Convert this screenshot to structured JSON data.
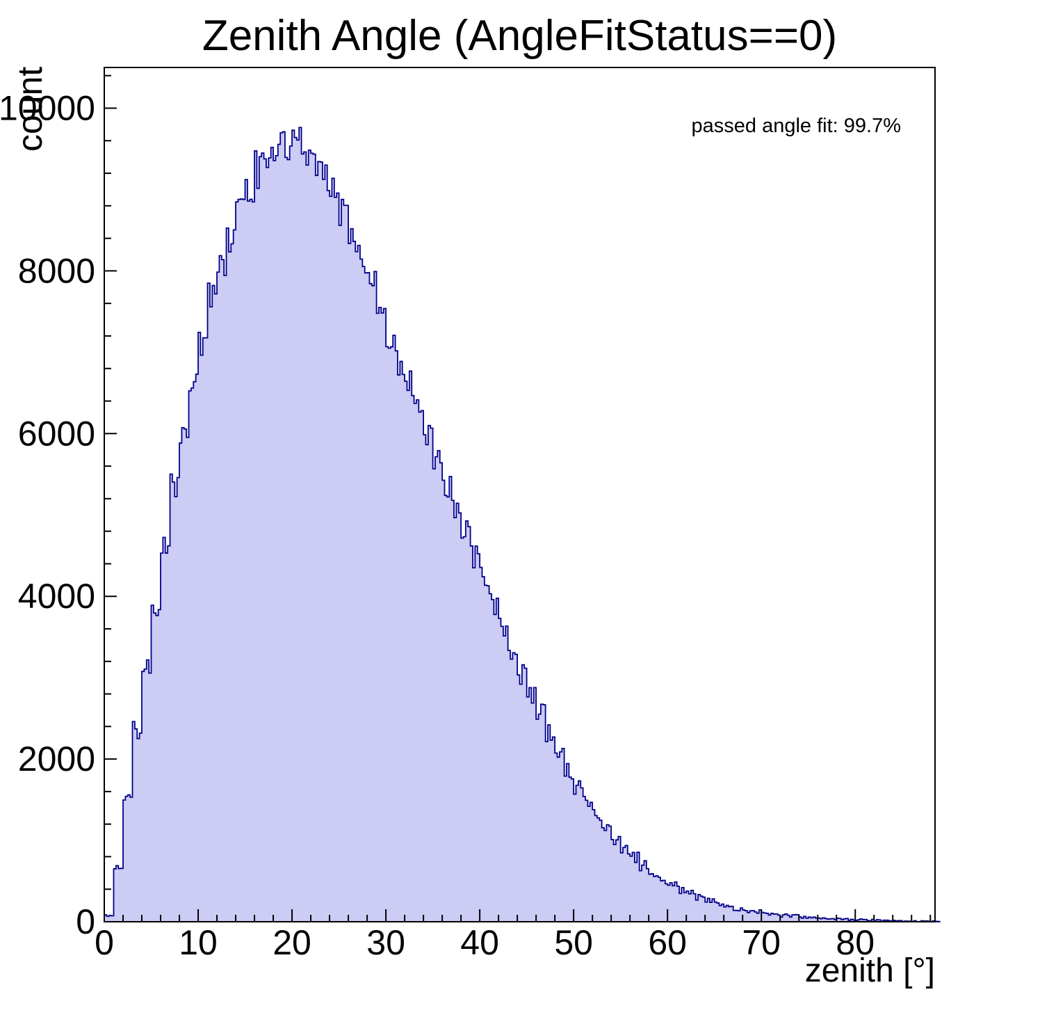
{
  "chart_data": {
    "type": "bar",
    "subtype": "histogram",
    "title": "Zenith Angle (AngleFitStatus==0)",
    "xlabel": "zenith [°]",
    "ylabel": "count",
    "annotation": "passed angle fit: 99.7%",
    "xlim": [
      0,
      88.5
    ],
    "ylim": [
      0,
      10500
    ],
    "x_ticks": [
      0,
      10,
      20,
      30,
      40,
      50,
      60,
      70,
      80
    ],
    "y_ticks": [
      0,
      2000,
      4000,
      6000,
      8000,
      10000
    ],
    "x_minor_step": 2,
    "y_minor_step": 400,
    "bin_width": 1,
    "bin_start": 0,
    "grid": false,
    "legend": null,
    "values": [
      80,
      700,
      1550,
      2350,
      3100,
      3900,
      4600,
      5350,
      6000,
      6600,
      7150,
      7650,
      8100,
      8450,
      8750,
      9000,
      9250,
      9450,
      9600,
      9550,
      9550,
      9450,
      9300,
      9150,
      8950,
      8700,
      8400,
      8100,
      7850,
      7450,
      7100,
      6850,
      6600,
      6300,
      6000,
      5700,
      5400,
      5100,
      4800,
      4500,
      4200,
      3900,
      3600,
      3300,
      3050,
      2800,
      2550,
      2300,
      2050,
      1850,
      1650,
      1480,
      1320,
      1160,
      1020,
      900,
      790,
      690,
      600,
      520,
      450,
      390,
      340,
      295,
      255,
      220,
      190,
      165,
      140,
      120,
      105,
      90,
      78,
      67,
      58,
      50,
      43,
      37,
      32,
      27,
      23,
      20,
      17,
      14,
      12,
      10,
      8,
      7,
      5
    ],
    "colors": {
      "fill": "#ccccf4",
      "line": "#00008b",
      "frame": "#000000",
      "background": "#ffffff"
    }
  }
}
